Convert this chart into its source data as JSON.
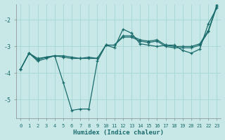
{
  "xlabel": "Humidex (Indice chaleur)",
  "background_color": "#c8e8e8",
  "grid_color": "#a8d8d8",
  "line_color": "#1a6b6b",
  "xlim": [
    -0.5,
    23.5
  ],
  "ylim": [
    -5.7,
    -1.4
  ],
  "yticks": [
    -5,
    -4,
    -3,
    -2
  ],
  "xticks": [
    0,
    1,
    2,
    3,
    4,
    5,
    6,
    7,
    8,
    9,
    10,
    11,
    12,
    13,
    14,
    15,
    16,
    17,
    18,
    19,
    20,
    21,
    22,
    23
  ],
  "series1_x": [
    0,
    1,
    2,
    3,
    4,
    5,
    6,
    7,
    8,
    9,
    10,
    11,
    12,
    13,
    14,
    15,
    16,
    17,
    18,
    19,
    20,
    21,
    22,
    23
  ],
  "series1_y": [
    -3.85,
    -3.25,
    -3.55,
    -3.45,
    -3.35,
    -4.35,
    -5.4,
    -5.35,
    -5.35,
    -3.55,
    -2.95,
    -3.05,
    -2.35,
    -2.5,
    -2.9,
    -2.95,
    -3.0,
    -2.95,
    -2.95,
    -3.15,
    -3.25,
    -3.1,
    -2.15,
    -1.55
  ],
  "series2_x": [
    0,
    1,
    2,
    3,
    4,
    5,
    6,
    7,
    8,
    9,
    10,
    11,
    12,
    13,
    14,
    15,
    16,
    17,
    18,
    19,
    20,
    21,
    22,
    23
  ],
  "series2_y": [
    -3.85,
    -3.25,
    -3.5,
    -3.4,
    -3.35,
    -3.4,
    -3.45,
    -3.45,
    -3.45,
    -3.45,
    -2.95,
    -2.95,
    -2.65,
    -2.65,
    -2.8,
    -2.85,
    -2.8,
    -3.0,
    -3.05,
    -3.05,
    -3.05,
    -2.95,
    -2.45,
    -1.5
  ],
  "series3_x": [
    0,
    1,
    2,
    3,
    4,
    5,
    6,
    7,
    8,
    9,
    10,
    11,
    12,
    13,
    14,
    15,
    16,
    17,
    18,
    19,
    20,
    21,
    22,
    23
  ],
  "series3_y": [
    -3.85,
    -3.25,
    -3.45,
    -3.4,
    -3.35,
    -3.35,
    -3.4,
    -3.45,
    -3.4,
    -3.45,
    -2.95,
    -2.95,
    -2.6,
    -2.6,
    -2.75,
    -2.8,
    -2.75,
    -2.95,
    -3.0,
    -3.0,
    -3.0,
    -2.9,
    -2.4,
    -1.45
  ]
}
